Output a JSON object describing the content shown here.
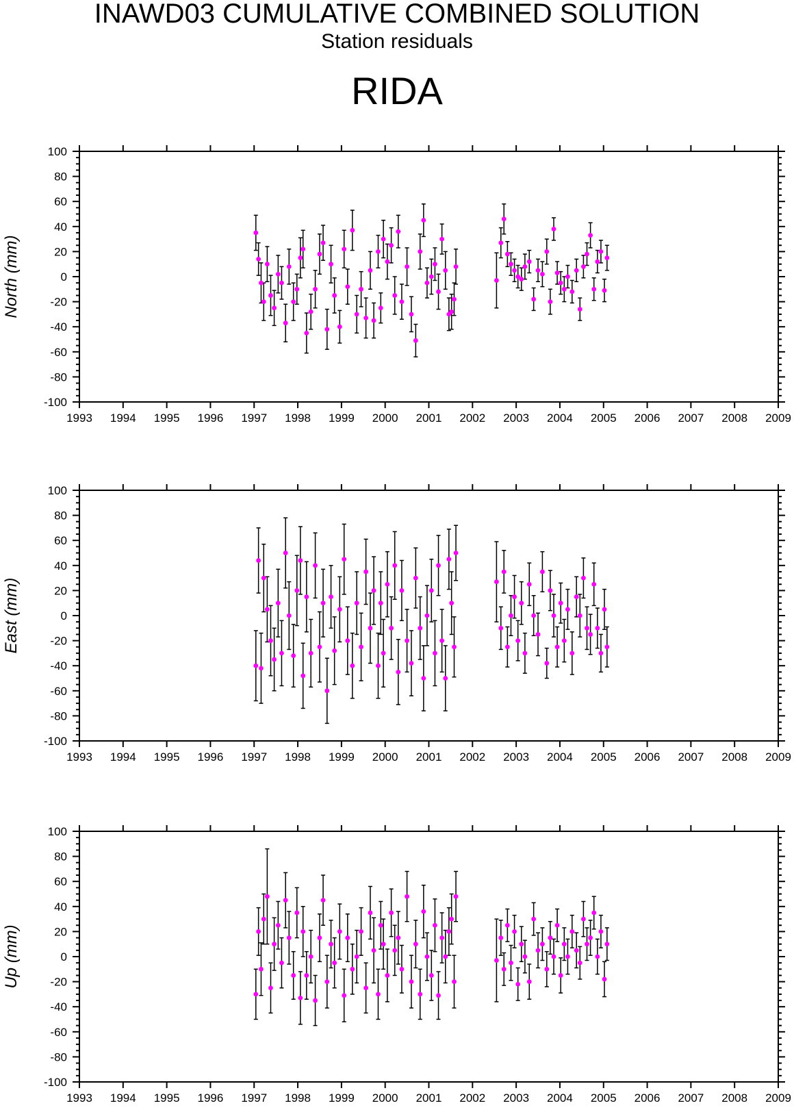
{
  "figure": {
    "title": "INAWD03 CUMULATIVE COMBINED SOLUTION",
    "subtitle": "Station residuals",
    "station": "RIDA"
  },
  "colors": {
    "point": "#ff00ff",
    "errorbar": "#000000",
    "axis": "#000000",
    "background": "#ffffff"
  },
  "chart_data": [
    {
      "type": "scatter",
      "ylabel": "North (mm)",
      "xlim": [
        1993,
        2009
      ],
      "ylim": [
        -100,
        100
      ],
      "x_ticks": [
        "1993",
        "1994",
        "1995",
        "1996",
        "1997",
        "1998",
        "1999",
        "2000",
        "2001",
        "2002",
        "2003",
        "2004",
        "2005",
        "2006",
        "2007",
        "2008",
        "2009"
      ],
      "y_ticks": [
        "100",
        "80",
        "60",
        "40",
        "20",
        "0",
        "-20",
        "-40",
        "-60",
        "-80",
        "-100"
      ],
      "grid": false,
      "series": [
        {
          "x": [
            1997.04,
            1997.1,
            1997.16,
            1997.22,
            1997.3,
            1997.38,
            1997.46,
            1997.55,
            1997.63,
            1997.72,
            1997.8,
            1997.9,
            1997.98,
            1998.06,
            1998.12,
            1998.2,
            1998.3,
            1998.4,
            1998.5,
            1998.58,
            1998.67,
            1998.76,
            1998.84,
            1998.96,
            1999.06,
            1999.14,
            1999.25,
            1999.35,
            1999.45,
            1999.56,
            1999.66,
            1999.74,
            1999.84,
            1999.9,
            1999.96,
            2000.05,
            2000.14,
            2000.22,
            2000.3,
            2000.38,
            2000.5,
            2000.6,
            2000.7,
            2000.8,
            2000.88,
            2000.96,
            2001.06,
            2001.14,
            2001.22,
            2001.3,
            2001.38,
            2001.46,
            2001.52,
            2001.58,
            2001.62,
            2002.55,
            2002.65,
            2002.72,
            2002.8,
            2002.88,
            2002.96,
            2003.04,
            2003.12,
            2003.2,
            2003.3,
            2003.4,
            2003.5,
            2003.6,
            2003.7,
            2003.78,
            2003.86,
            2003.94,
            2004.02,
            2004.1,
            2004.18,
            2004.28,
            2004.38,
            2004.46,
            2004.54,
            2004.62,
            2004.7,
            2004.78,
            2004.86,
            2004.94,
            2005.02,
            2005.08
          ],
          "y": [
            35,
            14,
            -5,
            -20,
            10,
            -15,
            -25,
            2,
            -5,
            -37,
            8,
            -20,
            -10,
            15,
            22,
            -45,
            -28,
            -10,
            18,
            27,
            -42,
            10,
            -15,
            -40,
            22,
            -8,
            37,
            -30,
            -10,
            -33,
            5,
            -35,
            20,
            -25,
            30,
            12,
            25,
            -15,
            36,
            -20,
            8,
            -30,
            -51,
            20,
            45,
            -5,
            0,
            10,
            -12,
            30,
            5,
            -30,
            -28,
            -18,
            8,
            -3,
            27,
            46,
            18,
            10,
            5,
            0,
            -2,
            8,
            12,
            -18,
            5,
            2,
            20,
            -20,
            38,
            3,
            -5,
            -10,
            0,
            -12,
            5,
            -26,
            8,
            18,
            33,
            -10,
            12,
            20,
            -11,
            15
          ],
          "err": [
            14,
            13,
            16,
            15,
            14,
            16,
            14,
            15,
            13,
            15,
            14,
            15,
            12,
            16,
            15,
            16,
            14,
            15,
            16,
            14,
            16,
            15,
            14,
            13,
            15,
            14,
            16,
            15,
            14,
            16,
            15,
            14,
            13,
            12,
            15,
            14,
            14,
            15,
            13,
            14,
            15,
            14,
            13,
            14,
            13,
            12,
            14,
            13,
            14,
            12,
            15,
            13,
            14,
            13,
            14,
            22,
            12,
            12,
            10,
            9,
            9,
            9,
            9,
            10,
            9,
            9,
            9,
            10,
            10,
            10,
            9,
            9,
            9,
            10,
            9,
            9,
            9,
            9,
            9,
            9,
            10,
            9,
            9,
            9,
            9,
            10
          ]
        }
      ]
    },
    {
      "type": "scatter",
      "ylabel": "East (mm)",
      "xlim": [
        1993,
        2009
      ],
      "ylim": [
        -100,
        100
      ],
      "x_ticks": [
        "1993",
        "1994",
        "1995",
        "1996",
        "1997",
        "1998",
        "1999",
        "2000",
        "2001",
        "2002",
        "2003",
        "2004",
        "2005",
        "2006",
        "2007",
        "2008",
        "2009"
      ],
      "y_ticks": [
        "100",
        "80",
        "60",
        "40",
        "20",
        "0",
        "-20",
        "-40",
        "-60",
        "-80",
        "-100"
      ],
      "grid": false,
      "series": [
        {
          "x": [
            1997.04,
            1997.1,
            1997.16,
            1997.22,
            1997.3,
            1997.38,
            1997.46,
            1997.55,
            1997.63,
            1997.72,
            1997.8,
            1997.9,
            1997.98,
            1998.06,
            1998.12,
            1998.2,
            1998.3,
            1998.4,
            1998.5,
            1998.58,
            1998.67,
            1998.76,
            1998.84,
            1998.96,
            1999.06,
            1999.14,
            1999.25,
            1999.35,
            1999.45,
            1999.56,
            1999.66,
            1999.74,
            1999.84,
            1999.9,
            1999.96,
            2000.05,
            2000.14,
            2000.22,
            2000.3,
            2000.38,
            2000.5,
            2000.6,
            2000.7,
            2000.8,
            2000.88,
            2000.96,
            2001.06,
            2001.14,
            2001.22,
            2001.3,
            2001.38,
            2001.46,
            2001.52,
            2001.58,
            2001.62,
            2002.55,
            2002.65,
            2002.72,
            2002.8,
            2002.88,
            2002.96,
            2003.04,
            2003.12,
            2003.2,
            2003.3,
            2003.4,
            2003.5,
            2003.6,
            2003.7,
            2003.78,
            2003.86,
            2003.94,
            2004.02,
            2004.1,
            2004.18,
            2004.28,
            2004.38,
            2004.46,
            2004.54,
            2004.62,
            2004.7,
            2004.78,
            2004.86,
            2004.94,
            2005.02,
            2005.08
          ],
          "y": [
            -40,
            44,
            -42,
            30,
            5,
            -20,
            -35,
            10,
            -30,
            50,
            0,
            -32,
            20,
            44,
            -48,
            15,
            -30,
            40,
            -25,
            10,
            -60,
            15,
            -28,
            5,
            45,
            -20,
            -40,
            10,
            -25,
            35,
            -10,
            20,
            -40,
            10,
            -30,
            25,
            -10,
            40,
            -45,
            20,
            -20,
            -38,
            30,
            -10,
            -50,
            0,
            20,
            -30,
            40,
            -20,
            -50,
            45,
            10,
            -25,
            50,
            27,
            -10,
            35,
            -25,
            0,
            15,
            -20,
            10,
            -30,
            25,
            0,
            -15,
            35,
            -38,
            20,
            0,
            -25,
            10,
            -20,
            5,
            -30,
            15,
            0,
            30,
            -10,
            -15,
            25,
            -10,
            -30,
            5,
            -25
          ],
          "err": [
            28,
            26,
            28,
            27,
            26,
            28,
            25,
            27,
            26,
            28,
            27,
            25,
            28,
            27,
            26,
            28,
            27,
            26,
            28,
            27,
            26,
            25,
            27,
            26,
            28,
            27,
            26,
            25,
            27,
            26,
            28,
            27,
            26,
            25,
            27,
            26,
            25,
            27,
            26,
            24,
            25,
            26,
            24,
            25,
            26,
            24,
            25,
            26,
            24,
            25,
            26,
            24,
            25,
            24,
            22,
            32,
            17,
            17,
            16,
            16,
            17,
            16,
            17,
            16,
            17,
            16,
            17,
            16,
            12,
            16,
            17,
            16,
            16,
            17,
            16,
            17,
            16,
            17,
            16,
            17,
            16,
            17,
            16,
            15,
            16,
            16
          ]
        }
      ]
    },
    {
      "type": "scatter",
      "ylabel": "Up (mm)",
      "xlim": [
        1993,
        2009
      ],
      "ylim": [
        -100,
        100
      ],
      "x_ticks": [
        "1993",
        "1994",
        "1995",
        "1996",
        "1997",
        "1998",
        "1999",
        "2000",
        "2001",
        "2002",
        "2003",
        "2004",
        "2005",
        "2006",
        "2007",
        "2008",
        "2009"
      ],
      "y_ticks": [
        "100",
        "80",
        "60",
        "40",
        "20",
        "0",
        "-20",
        "-40",
        "-60",
        "-80",
        "-100"
      ],
      "grid": false,
      "series": [
        {
          "x": [
            1997.04,
            1997.1,
            1997.16,
            1997.22,
            1997.3,
            1997.38,
            1997.46,
            1997.55,
            1997.63,
            1997.72,
            1997.8,
            1997.9,
            1997.98,
            1998.06,
            1998.12,
            1998.2,
            1998.3,
            1998.4,
            1998.5,
            1998.58,
            1998.67,
            1998.76,
            1998.84,
            1998.96,
            1999.06,
            1999.14,
            1999.25,
            1999.35,
            1999.45,
            1999.56,
            1999.66,
            1999.74,
            1999.84,
            1999.9,
            1999.96,
            2000.05,
            2000.14,
            2000.22,
            2000.3,
            2000.38,
            2000.5,
            2000.6,
            2000.7,
            2000.8,
            2000.88,
            2000.96,
            2001.06,
            2001.14,
            2001.22,
            2001.3,
            2001.38,
            2001.46,
            2001.52,
            2001.58,
            2001.62,
            2002.55,
            2002.65,
            2002.72,
            2002.8,
            2002.88,
            2002.96,
            2003.04,
            2003.12,
            2003.2,
            2003.3,
            2003.4,
            2003.5,
            2003.6,
            2003.7,
            2003.78,
            2003.86,
            2003.94,
            2004.02,
            2004.1,
            2004.18,
            2004.28,
            2004.38,
            2004.46,
            2004.54,
            2004.62,
            2004.7,
            2004.78,
            2004.86,
            2004.94,
            2005.02,
            2005.08
          ],
          "y": [
            -30,
            20,
            -10,
            30,
            48,
            -25,
            10,
            25,
            -5,
            45,
            15,
            -15,
            35,
            -33,
            20,
            -15,
            0,
            -35,
            15,
            45,
            -20,
            10,
            -5,
            20,
            -31,
            15,
            -10,
            0,
            20,
            -25,
            35,
            5,
            -30,
            25,
            10,
            -15,
            35,
            5,
            15,
            -10,
            48,
            -20,
            10,
            -30,
            36,
            0,
            -15,
            25,
            -31,
            15,
            0,
            20,
            30,
            -20,
            48,
            -3,
            15,
            -10,
            25,
            -5,
            20,
            -22,
            10,
            0,
            -20,
            30,
            5,
            10,
            -10,
            15,
            0,
            25,
            -15,
            10,
            0,
            20,
            5,
            -5,
            30,
            10,
            15,
            35,
            0,
            20,
            -18,
            10
          ],
          "err": [
            20,
            19,
            21,
            20,
            38,
            20,
            21,
            19,
            20,
            22,
            21,
            19,
            20,
            21,
            20,
            19,
            21,
            20,
            19,
            20,
            21,
            19,
            20,
            22,
            21,
            19,
            20,
            21,
            19,
            20,
            21,
            26,
            20,
            19,
            20,
            21,
            19,
            20,
            21,
            19,
            20,
            21,
            19,
            20,
            21,
            19,
            20,
            21,
            19,
            20,
            21,
            19,
            20,
            21,
            20,
            33,
            14,
            13,
            13,
            14,
            13,
            13,
            14,
            13,
            14,
            13,
            14,
            13,
            14,
            13,
            14,
            13,
            14,
            13,
            14,
            13,
            14,
            13,
            14,
            13,
            14,
            13,
            14,
            13,
            14,
            13
          ]
        }
      ]
    }
  ]
}
